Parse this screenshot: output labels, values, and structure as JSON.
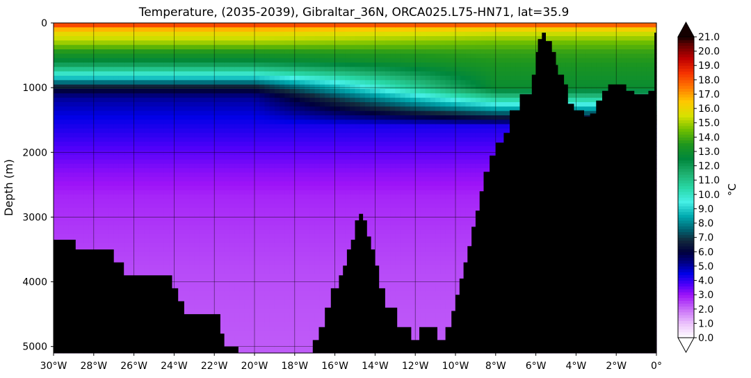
{
  "chart_data": {
    "type": "heatmap",
    "title": "Temperature, (2035-2039), Gibraltar_36N, ORCA025.L75-HN71, lat=35.9",
    "xlabel": "",
    "ylabel": "Depth (m)",
    "xlim": [
      -30,
      0
    ],
    "ylim": [
      5100,
      0
    ],
    "x_ticks": [
      -30,
      -28,
      -26,
      -24,
      -22,
      -20,
      -18,
      -16,
      -14,
      -12,
      -10,
      -8,
      -6,
      -4,
      -2,
      0
    ],
    "x_tick_labels": [
      "30°W",
      "28°W",
      "26°W",
      "24°W",
      "22°W",
      "20°W",
      "18°W",
      "16°W",
      "14°W",
      "12°W",
      "10°W",
      "8°W",
      "6°W",
      "4°W",
      "2°W",
      "0°"
    ],
    "y_ticks": [
      0,
      1000,
      2000,
      3000,
      4000,
      5000
    ],
    "y_tick_labels": [
      "0",
      "1000",
      "2000",
      "3000",
      "4000",
      "5000"
    ],
    "grid": true,
    "colorbar": {
      "label": "°C",
      "min": 0.0,
      "max": 21.0,
      "extend": "both",
      "ticks": [
        0,
        1,
        2,
        3,
        4,
        5,
        6,
        7,
        8,
        9,
        10,
        11,
        12,
        13,
        14,
        15,
        16,
        17,
        18,
        19,
        20,
        21
      ],
      "tick_labels": [
        "0.0",
        "1.0",
        "2.0",
        "3.0",
        "4.0",
        "5.0",
        "6.0",
        "7.0",
        "8.0",
        "9.0",
        "10.0",
        "11.0",
        "12.0",
        "13.0",
        "14.0",
        "15.0",
        "16.0",
        "17.0",
        "18.0",
        "19.0",
        "20.0",
        "21.0"
      ]
    },
    "temperature_profile_open_ocean": {
      "depth": [
        0,
        50,
        150,
        300,
        450,
        600,
        750,
        900,
        1000,
        1100,
        1200,
        1350,
        1500,
        1700,
        2000,
        2300,
        2700,
        3200,
        3800,
        4400,
        5100
      ],
      "temp": [
        19.5,
        17.5,
        16.0,
        15.0,
        13.5,
        12.5,
        10.5,
        8.0,
        6.5,
        5.5,
        5.0,
        4.7,
        4.4,
        4.1,
        3.6,
        3.2,
        2.8,
        2.6,
        2.4,
        2.3,
        2.2
      ]
    },
    "temperature_profile_med_outflow": {
      "depth": [
        0,
        50,
        150,
        300,
        450,
        600,
        750,
        900,
        1000,
        1100,
        1200,
        1350,
        1500
      ],
      "temp": [
        19.5,
        17.0,
        15.5,
        14.5,
        13.8,
        13.5,
        13.2,
        13.0,
        12.9,
        12.9,
        12.9,
        12.9,
        12.9
      ]
    },
    "bathymetry": {
      "lon": [
        -30,
        -29.9,
        -28.9,
        -27.3,
        -27.0,
        -26.5,
        -24.1,
        -23.8,
        -23.5,
        -21.7,
        -21.5,
        -20.8,
        -18.0,
        -17.1,
        -16.8,
        -16.5,
        -16.2,
        -15.8,
        -15.6,
        -15.4,
        -15.2,
        -15.0,
        -14.8,
        -14.6,
        -14.4,
        -14.2,
        -14.0,
        -13.8,
        -13.5,
        -12.9,
        -12.2,
        -12.0,
        -11.8,
        -10.9,
        -10.5,
        -10.2,
        -10.0,
        -9.8,
        -9.6,
        -9.4,
        -9.2,
        -9.0,
        -8.8,
        -8.6,
        -8.3,
        -8.0,
        -7.6,
        -7.3,
        -6.8,
        -6.2,
        -6.0,
        -5.9,
        -5.7,
        -5.5,
        -5.2,
        -5.0,
        -4.9,
        -4.6,
        -4.4,
        -4.1,
        -3.6,
        -3.3,
        -3.0,
        -2.7,
        -2.4,
        -2.0,
        -1.5,
        -1.1,
        -0.7,
        -0.4,
        -0.1,
        0
      ],
      "depth": [
        3350,
        3350,
        3500,
        3500,
        3700,
        3900,
        4100,
        4300,
        4500,
        4800,
        5000,
        5100,
        5100,
        4900,
        4700,
        4400,
        4100,
        3900,
        3750,
        3500,
        3350,
        3050,
        2950,
        3050,
        3300,
        3500,
        3750,
        4100,
        4400,
        4700,
        4900,
        4900,
        4700,
        4900,
        4700,
        4450,
        4200,
        3950,
        3700,
        3450,
        3150,
        2900,
        2600,
        2300,
        2050,
        1850,
        1700,
        1350,
        1100,
        800,
        450,
        250,
        150,
        280,
        450,
        650,
        800,
        950,
        1250,
        1350,
        1450,
        1400,
        1200,
        1050,
        950,
        950,
        1050,
        1100,
        1100,
        1050,
        150,
        0
      ]
    }
  }
}
